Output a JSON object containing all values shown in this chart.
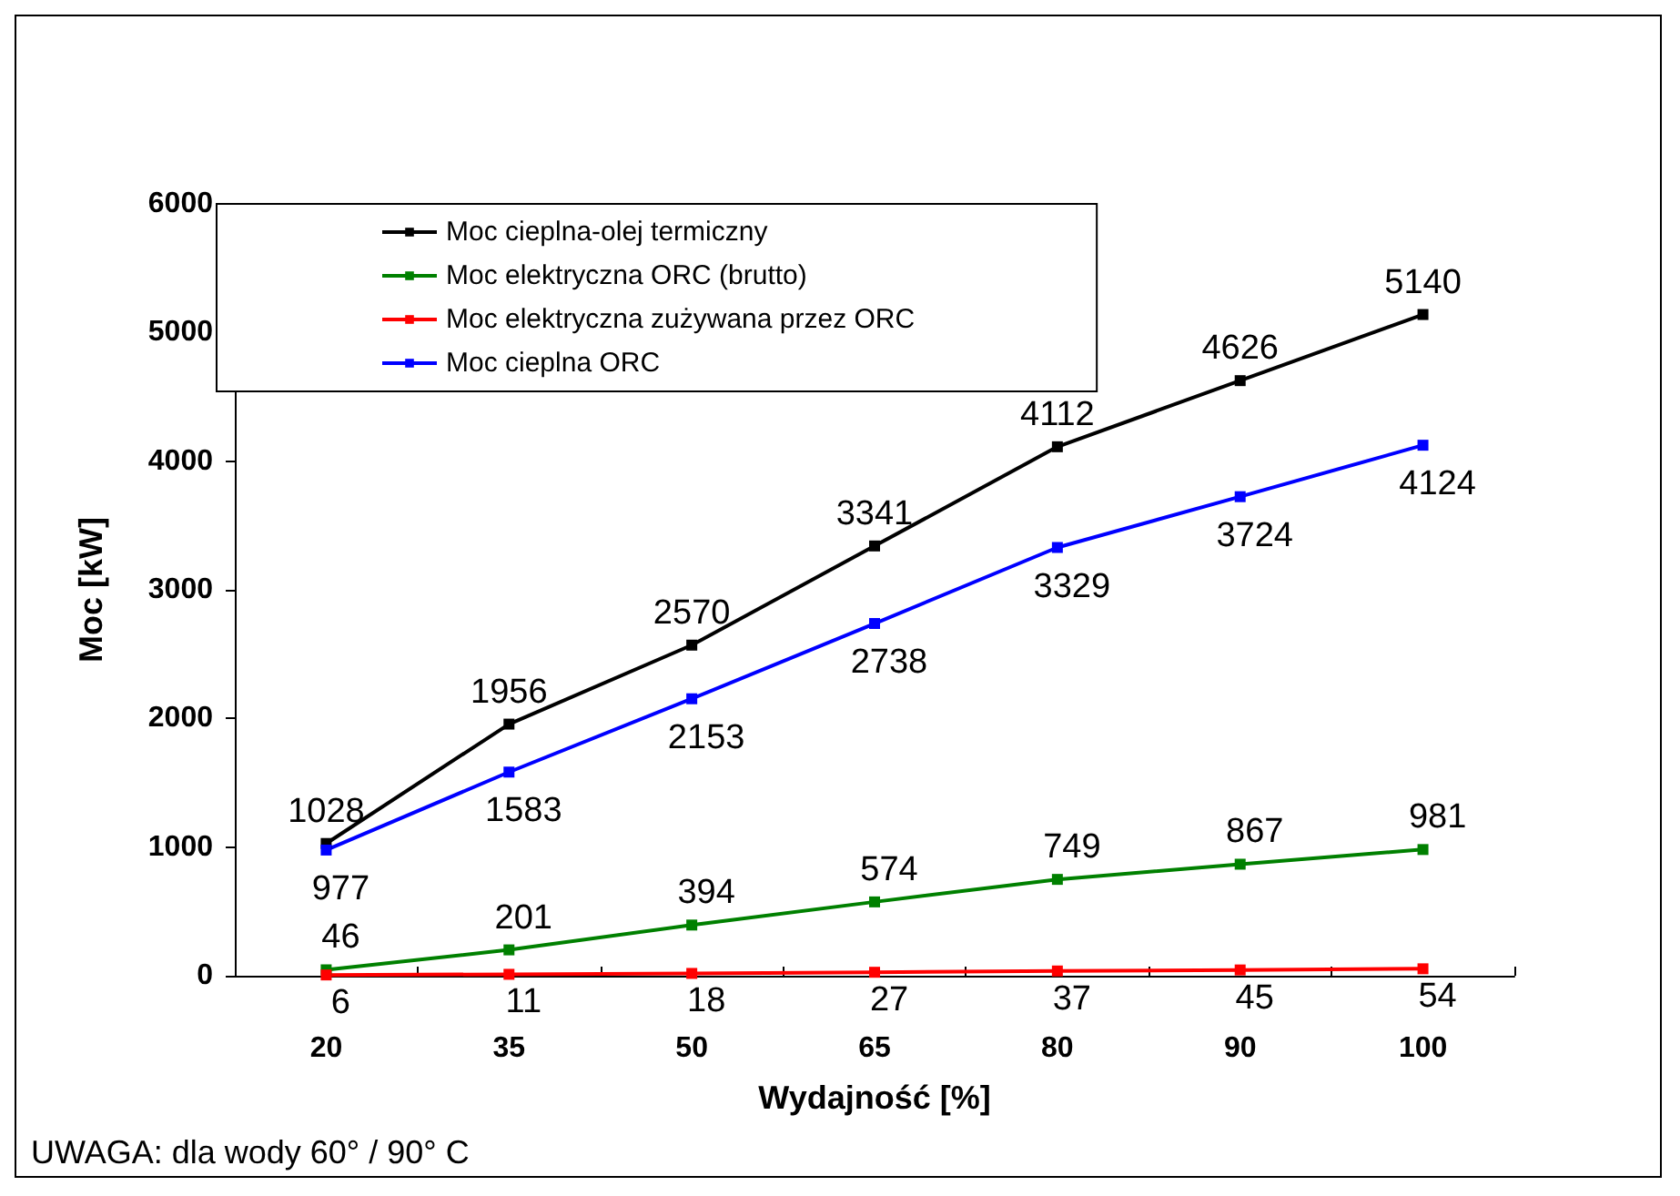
{
  "chart_data": {
    "type": "line",
    "xlabel": "Wydajność [%]",
    "ylabel": "Moc [kW]",
    "categories": [
      "20",
      "35",
      "50",
      "65",
      "80",
      "90",
      "100"
    ],
    "series": [
      {
        "name": "Moc cieplna-olej termiczny",
        "color": "#000000",
        "values": [
          1028,
          1956,
          2570,
          3341,
          4112,
          4626,
          5140
        ]
      },
      {
        "name": "Moc elektryczna ORC (brutto)",
        "color": "#008000",
        "values": [
          46,
          201,
          394,
          574,
          749,
          867,
          981
        ]
      },
      {
        "name": "Moc elektryczna zużywana przez ORC",
        "color": "#ff0000",
        "values": [
          6,
          11,
          18,
          27,
          37,
          45,
          54
        ]
      },
      {
        "name": "Moc cieplna ORC",
        "color": "#0000ff",
        "values": [
          977,
          1583,
          2153,
          2738,
          3329,
          3724,
          4124
        ]
      }
    ],
    "ylim": [
      0,
      6000
    ],
    "yticks": [
      0,
      1000,
      2000,
      3000,
      4000,
      5000,
      6000
    ],
    "data_labels": true,
    "legend": "top left",
    "grid": false,
    "marker": "square",
    "line_style": "solid",
    "annotations": [
      "UWAGA: dla wody 60° / 90° C"
    ]
  }
}
